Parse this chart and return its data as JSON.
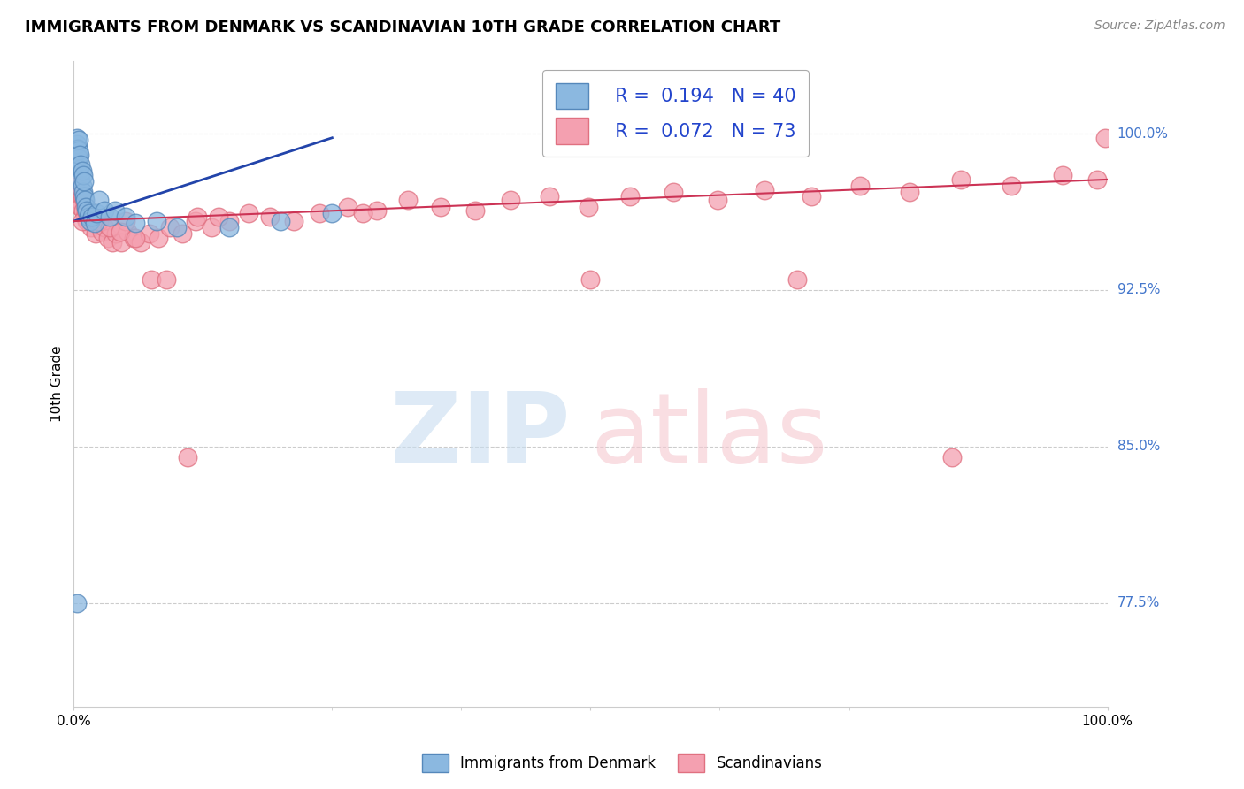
{
  "title": "IMMIGRANTS FROM DENMARK VS SCANDINAVIAN 10TH GRADE CORRELATION CHART",
  "source": "Source: ZipAtlas.com",
  "ylabel": "10th Grade",
  "ylabel_right_labels": [
    "100.0%",
    "92.5%",
    "85.0%",
    "77.5%"
  ],
  "ylabel_right_values": [
    1.0,
    0.925,
    0.85,
    0.775
  ],
  "xlim": [
    0.0,
    1.0
  ],
  "ylim": [
    0.725,
    1.035
  ],
  "blue_color": "#8BB8E0",
  "pink_color": "#F4A0B0",
  "blue_edge": "#5588BB",
  "pink_edge": "#E07080",
  "trendline_blue": "#2244AA",
  "trendline_pink": "#CC3355",
  "grid_color": "#CCCCCC",
  "background": "#FFFFFF",
  "blue_x": [
    0.002,
    0.003,
    0.003,
    0.004,
    0.004,
    0.005,
    0.005,
    0.005,
    0.006,
    0.006,
    0.007,
    0.007,
    0.008,
    0.008,
    0.009,
    0.009,
    0.01,
    0.01,
    0.011,
    0.012,
    0.013,
    0.014,
    0.015,
    0.016,
    0.018,
    0.02,
    0.022,
    0.025,
    0.03,
    0.035,
    0.04,
    0.05,
    0.06,
    0.08,
    0.1,
    0.15,
    0.2,
    0.25,
    0.65,
    0.003
  ],
  "blue_y": [
    0.99,
    0.995,
    0.998,
    0.985,
    0.993,
    0.988,
    0.992,
    0.997,
    0.983,
    0.99,
    0.978,
    0.985,
    0.975,
    0.982,
    0.972,
    0.98,
    0.97,
    0.977,
    0.968,
    0.965,
    0.963,
    0.96,
    0.962,
    0.958,
    0.96,
    0.957,
    0.962,
    0.968,
    0.963,
    0.96,
    0.963,
    0.96,
    0.957,
    0.958,
    0.955,
    0.955,
    0.958,
    0.962,
    0.998,
    0.775
  ],
  "pink_x": [
    0.003,
    0.004,
    0.005,
    0.006,
    0.007,
    0.008,
    0.009,
    0.01,
    0.011,
    0.012,
    0.013,
    0.015,
    0.017,
    0.019,
    0.021,
    0.024,
    0.027,
    0.03,
    0.033,
    0.037,
    0.041,
    0.046,
    0.052,
    0.058,
    0.065,
    0.073,
    0.082,
    0.093,
    0.105,
    0.118,
    0.133,
    0.15,
    0.169,
    0.19,
    0.213,
    0.238,
    0.265,
    0.293,
    0.323,
    0.355,
    0.388,
    0.423,
    0.46,
    0.498,
    0.538,
    0.58,
    0.623,
    0.668,
    0.714,
    0.761,
    0.809,
    0.858,
    0.907,
    0.957,
    0.99,
    0.998,
    0.05,
    0.12,
    0.28,
    0.008,
    0.012,
    0.018,
    0.025,
    0.035,
    0.045,
    0.06,
    0.075,
    0.09,
    0.11,
    0.14,
    0.5,
    0.7,
    0.85
  ],
  "pink_y": [
    0.972,
    0.975,
    0.968,
    0.973,
    0.965,
    0.97,
    0.963,
    0.968,
    0.96,
    0.965,
    0.958,
    0.962,
    0.955,
    0.96,
    0.952,
    0.957,
    0.953,
    0.955,
    0.95,
    0.948,
    0.952,
    0.948,
    0.953,
    0.95,
    0.948,
    0.952,
    0.95,
    0.955,
    0.952,
    0.958,
    0.955,
    0.958,
    0.962,
    0.96,
    0.958,
    0.962,
    0.965,
    0.963,
    0.968,
    0.965,
    0.963,
    0.968,
    0.97,
    0.965,
    0.97,
    0.972,
    0.968,
    0.973,
    0.97,
    0.975,
    0.972,
    0.978,
    0.975,
    0.98,
    0.978,
    0.998,
    0.958,
    0.96,
    0.962,
    0.958,
    0.963,
    0.96,
    0.958,
    0.955,
    0.953,
    0.95,
    0.93,
    0.93,
    0.845,
    0.96,
    0.93,
    0.93,
    0.845
  ]
}
